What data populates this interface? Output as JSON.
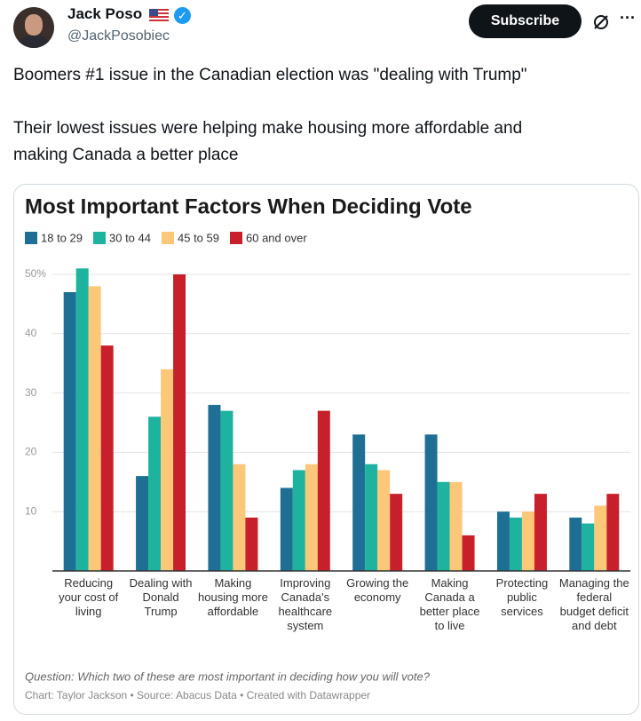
{
  "tweet": {
    "name": "Jack Poso",
    "handle": "@JackPosobiec",
    "subscribe": "Subscribe",
    "text_lines": [
      "Boomers #1 issue in the Canadian election was \"dealing with Trump\"",
      "Their lowest issues were helping make housing more affordable and",
      "making Canada a better place"
    ]
  },
  "chart_data": {
    "type": "bar",
    "title": "Most Important Factors When Deciding Vote",
    "categories": [
      "Reducing your cost of living",
      "Dealing with Donald Trump",
      "Making housing more affordable",
      "Improving Canada's healthcare system",
      "Growing the economy",
      "Making Canada a better place to live",
      "Protecting public services",
      "Managing the federal budget deficit and debt"
    ],
    "series": [
      {
        "name": "18 to 29",
        "color": "#1f6f94",
        "values": [
          47,
          16,
          28,
          14,
          23,
          23,
          10,
          9
        ]
      },
      {
        "name": "30 to 44",
        "color": "#1db39e",
        "values": [
          51,
          26,
          27,
          17,
          18,
          15,
          9,
          8
        ]
      },
      {
        "name": "45 to 59",
        "color": "#fbc87a",
        "values": [
          48,
          34,
          18,
          18,
          17,
          15,
          10,
          11
        ]
      },
      {
        "name": "60 and over",
        "color": "#c8202a",
        "values": [
          38,
          50,
          9,
          27,
          13,
          6,
          13,
          13
        ]
      }
    ],
    "ylim": [
      0,
      50
    ],
    "yticks": [
      10,
      20,
      30,
      40,
      {
        "value": 50,
        "label": "50%"
      }
    ],
    "grid": true,
    "question": "Question: Which two of these are most important in deciding how you will vote?",
    "credit": "Chart: Taylor Jackson • Source: Abacus Data • Created with Datawrapper"
  }
}
